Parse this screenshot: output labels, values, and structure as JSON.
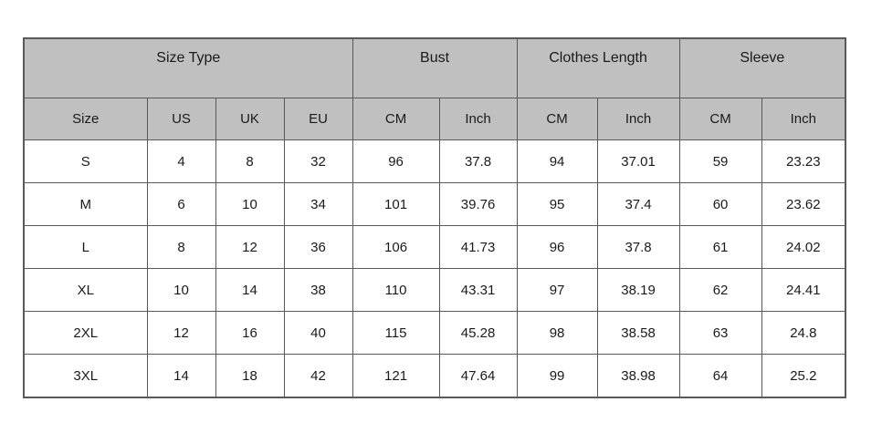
{
  "chart_data": {
    "type": "table",
    "group_headers": [
      {
        "label": "Size Type",
        "colspan": 4
      },
      {
        "label": "Bust",
        "colspan": 2
      },
      {
        "label": "Clothes Length",
        "colspan": 2
      },
      {
        "label": "Sleeve",
        "colspan": 2
      }
    ],
    "columns": [
      "Size",
      "US",
      "UK",
      "EU",
      "CM",
      "Inch",
      "CM",
      "Inch",
      "CM",
      "Inch"
    ],
    "rows": [
      [
        "S",
        "4",
        "8",
        "32",
        "96",
        "37.8",
        "94",
        "37.01",
        "59",
        "23.23"
      ],
      [
        "M",
        "6",
        "10",
        "34",
        "101",
        "39.76",
        "95",
        "37.4",
        "60",
        "23.62"
      ],
      [
        "L",
        "8",
        "12",
        "36",
        "106",
        "41.73",
        "96",
        "37.8",
        "61",
        "24.02"
      ],
      [
        "XL",
        "10",
        "14",
        "38",
        "110",
        "43.31",
        "97",
        "38.19",
        "62",
        "24.41"
      ],
      [
        "2XL",
        "12",
        "16",
        "40",
        "115",
        "45.28",
        "98",
        "38.58",
        "63",
        "24.8"
      ],
      [
        "3XL",
        "14",
        "18",
        "42",
        "121",
        "47.64",
        "99",
        "38.98",
        "64",
        "25.2"
      ]
    ]
  },
  "colors": {
    "page_bg": "#ffffff",
    "header_bg": "#c0c0c0",
    "body_bg": "#ffffff",
    "border": "#595959",
    "text": "#1a1a1a"
  }
}
